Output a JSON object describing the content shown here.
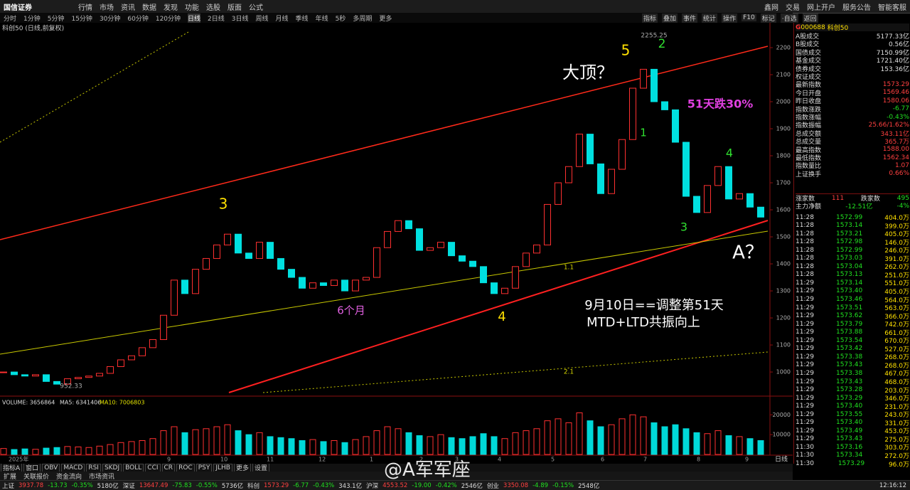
{
  "top_menu": {
    "logo": "国信证券",
    "items": [
      "行情",
      "市场",
      "资讯",
      "数据",
      "发现",
      "功能",
      "选股",
      "版面",
      "公式"
    ],
    "right": [
      "鑫网",
      "交易",
      "网上开户",
      "服务公告",
      "智能客服"
    ]
  },
  "period_tabs": [
    "分时",
    "1分钟",
    "5分钟",
    "15分钟",
    "30分钟",
    "60分钟",
    "120分钟",
    "日线",
    "2日线",
    "3日线",
    "周线",
    "月线",
    "季线",
    "年线",
    "5秒",
    "多周期",
    "更多"
  ],
  "tool_tabs": [
    "指标",
    "叠加",
    "事件",
    "统计",
    "操作",
    "F10",
    "标记",
    "·自选",
    "返回"
  ],
  "chart": {
    "title": "科创50 (日线,前复权)",
    "ylim": [
      916,
      2271
    ],
    "yticks": [
      1000,
      1100,
      1200,
      1300,
      1400,
      1500,
      1600,
      1700,
      1800,
      1900,
      2000,
      2100,
      2200
    ],
    "closes": [
      1000,
      990,
      985,
      990,
      965,
      955,
      975,
      980,
      985,
      995,
      1020,
      1045,
      1060,
      1090,
      1120,
      1210,
      1340,
      1290,
      1380,
      1420,
      1470,
      1510,
      1440,
      1420,
      1480,
      1420,
      1380,
      1350,
      1310,
      1330,
      1320,
      1340,
      1300,
      1340,
      1350,
      1460,
      1520,
      1560,
      1530,
      1450,
      1460,
      1480,
      1430,
      1410,
      1390,
      1330,
      1290,
      1310,
      1390,
      1440,
      1470,
      1620,
      1700,
      1760,
      1880,
      1770,
      1660,
      1750,
      1860,
      2050,
      2120,
      2000,
      1970,
      1850,
      1650,
      1590,
      1690,
      1760,
      1640,
      1660,
      1610,
      1573
    ],
    "volume_legend": [
      "VOLUME: 3656864",
      "MA5: 6341406",
      "MA10: 7006803"
    ],
    "vol_ylim": [
      0,
      28000
    ],
    "vol_yticks": [
      10000,
      20000
    ],
    "volumes": [
      3000,
      2500,
      2800,
      2600,
      3200,
      3500,
      4000,
      3800,
      3500,
      4200,
      5000,
      6000,
      6500,
      7000,
      8000,
      12000,
      14000,
      11000,
      12500,
      13000,
      14000,
      15000,
      12000,
      10000,
      11000,
      9000,
      8500,
      8000,
      7000,
      7500,
      6500,
      7000,
      6000,
      7500,
      9000,
      12000,
      14000,
      13000,
      11000,
      9500,
      9000,
      10000,
      8500,
      8000,
      9000,
      10500,
      9000,
      8000,
      11000,
      12000,
      13000,
      17000,
      18000,
      16000,
      21000,
      17000,
      14000,
      15000,
      18000,
      20000,
      19000,
      16000,
      14000,
      15000,
      13000,
      11000,
      10500,
      12000,
      9500,
      9000,
      8000,
      7000
    ],
    "x_labels": [
      "2025年",
      "9",
      "10",
      "11",
      "12",
      "1",
      "2",
      "3",
      "4",
      "5",
      "6",
      "7",
      "8",
      "9"
    ],
    "period_label": "日线",
    "annotations": [
      "大顶？",
      "5",
      "2",
      "51天跌30%",
      "3",
      "1",
      "4",
      "3",
      "6个月",
      "4",
      "9月10日==调整第51天",
      "MTD+LTD共振向上",
      "A？",
      "2255.25",
      "952.33",
      "1.1",
      "2.1"
    ]
  },
  "indicator_tabs": [
    "指标A",
    "窗口",
    "OBV",
    "MACD",
    "RSI",
    "SKDJ",
    "BOLL",
    "CCI",
    "CR",
    "ROC",
    "PSY",
    "JLHB",
    "更多",
    "设置"
  ],
  "ext_tabs": [
    "扩展",
    "关联报价",
    "资金流向",
    "市场资讯"
  ],
  "right_panel": {
    "header": {
      "market": "G",
      "code": "000688",
      "name": "科创50"
    },
    "stats": [
      [
        "A股成交",
        "5177.33亿"
      ],
      [
        "B股成交",
        "0.56亿"
      ],
      [
        "国债成交",
        "7150.99亿"
      ],
      [
        "基金成交",
        "1721.40亿"
      ],
      [
        "债券成交",
        "153.36亿"
      ],
      [
        "权证成交"
      ],
      [
        "最新指数",
        "1573.29"
      ],
      [
        "今日开盘",
        "1569.46"
      ],
      [
        "昨日收盘",
        "1580.06"
      ],
      [
        "指数涨跌",
        "-6.77"
      ],
      [
        "指数涨幅",
        "-0.43%"
      ],
      [
        "指数振幅",
        "25.66/1.62%"
      ],
      [
        "总成交额",
        "343.11亿"
      ],
      [
        "总成交量",
        "365.7万"
      ],
      [
        "最高指数",
        "1588.00"
      ],
      [
        "最低指数",
        "1562.34"
      ],
      [
        "指数量比",
        "1.07"
      ],
      [
        "上证换手",
        "0.66%"
      ]
    ],
    "breadth": [
      "涨家数",
      "111",
      "跌家数",
      "495"
    ],
    "flow": [
      "主力净额",
      "-12.51亿",
      "-4%"
    ],
    "ticks": [
      [
        "11:28",
        "1572.99",
        "404.0万"
      ],
      [
        "11:28",
        "1573.14",
        "399.0万"
      ],
      [
        "11:28",
        "1573.21",
        "405.0万"
      ],
      [
        "11:28",
        "1572.98",
        "146.0万"
      ],
      [
        "11:28",
        "1572.99",
        "246.0万"
      ],
      [
        "11:28",
        "1573.03",
        "391.0万"
      ],
      [
        "11:28",
        "1573.04",
        "262.0万"
      ],
      [
        "11:28",
        "1573.13",
        "251.0万"
      ],
      [
        "11:29",
        "1573.14",
        "551.0万"
      ],
      [
        "11:29",
        "1573.40",
        "405.0万"
      ],
      [
        "11:29",
        "1573.46",
        "564.0万"
      ],
      [
        "11:29",
        "1573.51",
        "563.0万"
      ],
      [
        "11:29",
        "1573.62",
        "366.0万"
      ],
      [
        "11:29",
        "1573.79",
        "742.0万"
      ],
      [
        "11:29",
        "1573.88",
        "661.0万"
      ],
      [
        "11:29",
        "1573.54",
        "670.0万"
      ],
      [
        "11:29",
        "1573.42",
        "527.0万"
      ],
      [
        "11:29",
        "1573.38",
        "268.0万"
      ],
      [
        "11:29",
        "1573.43",
        "268.0万"
      ],
      [
        "11:29",
        "1573.38",
        "467.0万"
      ],
      [
        "11:29",
        "1573.43",
        "468.0万"
      ],
      [
        "11:29",
        "1573.28",
        "203.0万"
      ],
      [
        "11:29",
        "1573.29",
        "346.0万"
      ],
      [
        "11:29",
        "1573.40",
        "231.0万"
      ],
      [
        "11:29",
        "1573.55",
        "243.0万"
      ],
      [
        "11:29",
        "1573.40",
        "331.0万"
      ],
      [
        "11:29",
        "1573.49",
        "453.0万"
      ],
      [
        "11:29",
        "1573.43",
        "275.0万"
      ],
      [
        "11:30",
        "1573.16",
        "303.0万"
      ],
      [
        "11:30",
        "1573.34",
        "272.0万"
      ],
      [
        "11:30",
        "1573.29",
        "96.0万"
      ]
    ]
  },
  "status_bar": {
    "items": [
      [
        "上证",
        "3937.78",
        "-13.73",
        "-0.35%",
        "5180亿"
      ],
      [
        "深证",
        "13647.49",
        "-75.83",
        "-0.55%",
        "5736亿"
      ],
      [
        "科创",
        "1573.29",
        "-6.77",
        "-0.43%",
        "343.1亿"
      ],
      [
        "沪深",
        "4553.52",
        "-19.00",
        "-0.42%",
        "2546亿"
      ],
      [
        "创业",
        "3350.08",
        "-4.89",
        "-0.15%",
        "2548亿"
      ]
    ],
    "time": "12:16:12"
  },
  "watermark": "@A军军座"
}
